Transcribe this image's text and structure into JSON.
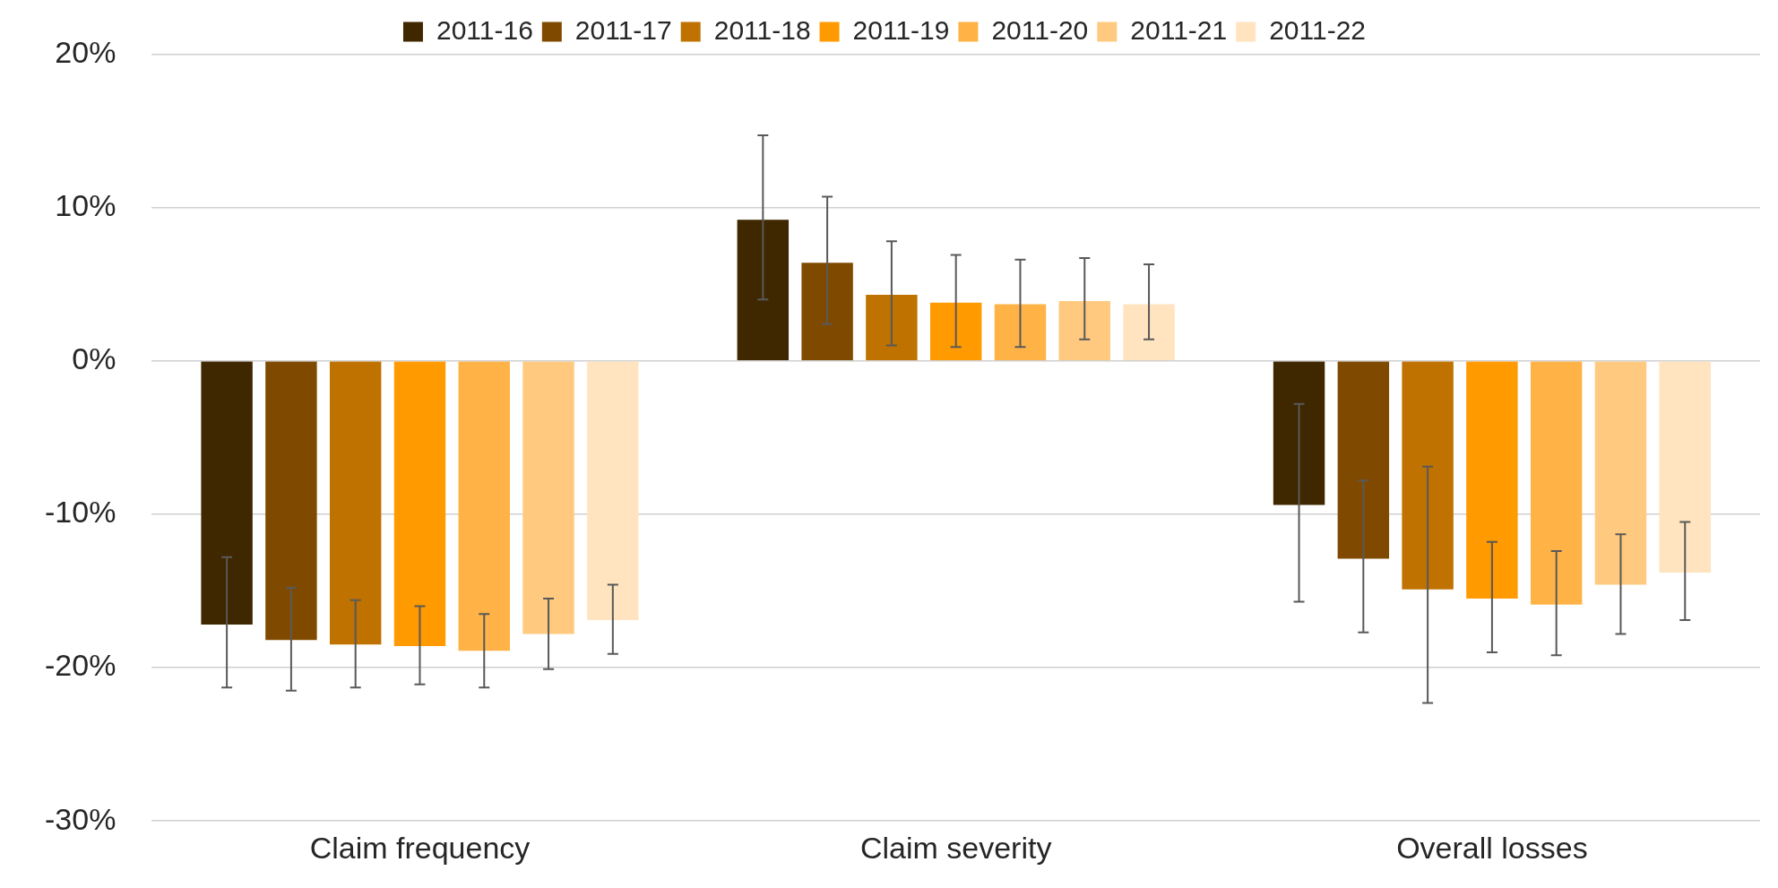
{
  "chart_data": {
    "type": "bar",
    "categories": [
      "Claim frequency",
      "Claim severity",
      "Overall losses"
    ],
    "series": [
      {
        "name": "2011-16",
        "color": "#3f2700",
        "values": [
          -17.2,
          9.2,
          -9.4
        ],
        "errors": [
          [
            -21.3,
            -12.8
          ],
          [
            4.0,
            14.7
          ],
          [
            -15.7,
            -2.8
          ]
        ]
      },
      {
        "name": "2011-17",
        "color": "#7f4a00",
        "values": [
          -18.2,
          6.4,
          -12.9
        ],
        "errors": [
          [
            -21.5,
            -14.8
          ],
          [
            2.4,
            10.7
          ],
          [
            -17.7,
            -7.8
          ]
        ]
      },
      {
        "name": "2011-18",
        "color": "#bf7200",
        "values": [
          -18.5,
          4.3,
          -14.9
        ],
        "errors": [
          [
            -21.3,
            -15.6
          ],
          [
            1.0,
            7.8
          ],
          [
            -22.3,
            -6.9
          ]
        ]
      },
      {
        "name": "2011-19",
        "color": "#ff9a00",
        "values": [
          -18.6,
          3.8,
          -15.5
        ],
        "errors": [
          [
            -21.1,
            -16.0
          ],
          [
            0.9,
            6.9
          ],
          [
            -19.0,
            -11.8
          ]
        ]
      },
      {
        "name": "2011-20",
        "color": "#ffb347",
        "values": [
          -18.9,
          3.7,
          -15.9
        ],
        "errors": [
          [
            -21.3,
            -16.5
          ],
          [
            0.9,
            6.6
          ],
          [
            -19.2,
            -12.4
          ]
        ]
      },
      {
        "name": "2011-21",
        "color": "#ffca80",
        "values": [
          -17.8,
          3.9,
          -14.6
        ],
        "errors": [
          [
            -20.1,
            -15.5
          ],
          [
            1.4,
            6.7
          ],
          [
            -17.8,
            -11.3
          ]
        ]
      },
      {
        "name": "2011-22",
        "color": "#ffe4bf",
        "values": [
          -16.9,
          3.7,
          -13.8
        ],
        "errors": [
          [
            -19.1,
            -14.6
          ],
          [
            1.4,
            6.3
          ],
          [
            -16.9,
            -10.5
          ]
        ]
      }
    ],
    "ylim": [
      -30,
      20
    ],
    "yticks": [
      {
        "value": -30,
        "label": "-30%"
      },
      {
        "value": -20,
        "label": "-20%"
      },
      {
        "value": -10,
        "label": "-10%"
      },
      {
        "value": 0,
        "label": "0%"
      },
      {
        "value": 10,
        "label": "10%"
      },
      {
        "value": 20,
        "label": "20%"
      }
    ],
    "grid": "y",
    "legend": "top"
  }
}
